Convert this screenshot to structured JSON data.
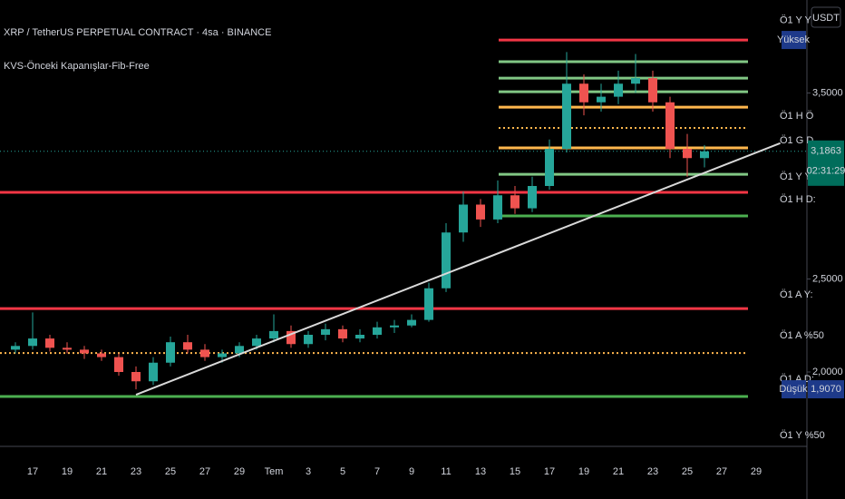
{
  "chart_data": {
    "type": "candlestick",
    "title": "XRP / TetherUS PERPETUAL CONTRACT · 4sa · BINANCE",
    "indicator": "KVS-Önceki Kapanışlar-Fib-Free",
    "currency": "USDT",
    "categories": [
      null,
      "17",
      null,
      "19",
      null,
      "21",
      null,
      "23",
      null,
      "25",
      null,
      "27",
      null,
      "29",
      null,
      "Tem",
      null,
      "3",
      null,
      "5",
      null,
      "7",
      null,
      "9",
      null,
      "11",
      null,
      "13",
      null,
      "15",
      null,
      "17",
      null,
      "19",
      null,
      "21",
      null,
      "23",
      null,
      "25",
      null,
      "27",
      null,
      "29"
    ],
    "open": [
      2.12,
      2.14,
      2.18,
      2.13,
      2.12,
      2.1,
      2.08,
      2.0,
      1.95,
      2.05,
      2.16,
      2.12,
      2.08,
      2.1,
      2.14,
      2.18,
      2.22,
      2.15,
      2.2,
      2.23,
      2.18,
      2.2,
      2.24,
      2.25,
      2.28,
      2.45,
      2.75,
      2.9,
      2.82,
      2.95,
      2.88,
      3.0,
      3.2,
      3.55,
      3.45,
      3.48,
      3.55,
      3.58,
      3.45,
      3.2,
      3.15,
      null,
      null,
      null
    ],
    "high": [
      2.16,
      2.32,
      2.2,
      2.16,
      2.14,
      2.12,
      2.1,
      2.03,
      2.08,
      2.19,
      2.2,
      2.15,
      2.12,
      2.16,
      2.2,
      2.31,
      2.25,
      2.22,
      2.26,
      2.25,
      2.23,
      2.27,
      2.28,
      2.31,
      2.48,
      2.8,
      2.97,
      2.93,
      3.03,
      3.0,
      3.05,
      3.25,
      3.72,
      3.6,
      3.55,
      3.62,
      3.71,
      3.62,
      3.48,
      3.28,
      3.22,
      null,
      null,
      null
    ],
    "low": [
      2.1,
      2.12,
      2.11,
      2.1,
      2.07,
      2.06,
      1.98,
      1.907,
      1.93,
      2.03,
      2.1,
      2.06,
      2.05,
      2.08,
      2.12,
      2.16,
      2.13,
      2.13,
      2.17,
      2.16,
      2.16,
      2.18,
      2.21,
      2.24,
      2.27,
      2.43,
      2.7,
      2.78,
      2.8,
      2.85,
      2.86,
      2.98,
      3.18,
      3.38,
      3.4,
      3.44,
      3.5,
      3.4,
      3.15,
      3.05,
      3.1,
      null,
      null,
      null
    ],
    "close": [
      2.14,
      2.18,
      2.13,
      2.12,
      2.1,
      2.08,
      2.0,
      1.95,
      2.05,
      2.16,
      2.12,
      2.08,
      2.1,
      2.14,
      2.18,
      2.22,
      2.15,
      2.2,
      2.23,
      2.18,
      2.2,
      2.24,
      2.25,
      2.28,
      2.45,
      2.75,
      2.9,
      2.82,
      2.95,
      2.88,
      3.0,
      3.2,
      3.55,
      3.45,
      3.48,
      3.55,
      3.58,
      3.45,
      3.2,
      3.15,
      3.1863,
      null,
      null,
      null
    ],
    "up_color": "#26a69a",
    "down_color": "#ef5350",
    "ylim": [
      1.6,
      4.0
    ],
    "yticks": [
      {
        "value": 3.5,
        "label": "3,5000"
      },
      {
        "value": 2.5,
        "label": "2,5000"
      },
      {
        "value": 2.0,
        "label": "2,0000"
      }
    ],
    "levels": [
      {
        "value": 3.785,
        "color": "#f23645",
        "dotted": false,
        "full": false
      },
      {
        "value": 3.668,
        "color": "#81c784",
        "dotted": false,
        "full": false
      },
      {
        "value": 3.58,
        "color": "#81c784",
        "dotted": false,
        "full": false
      },
      {
        "value": 3.507,
        "color": "#81c784",
        "dotted": false,
        "full": false
      },
      {
        "value": 3.424,
        "color": "#ffb74d",
        "dotted": false,
        "full": false
      },
      {
        "value": 3.312,
        "color": "#ffb74d",
        "dotted": true,
        "full": false
      },
      {
        "value": 3.205,
        "color": "#ffb74d",
        "dotted": false,
        "full": false
      },
      {
        "value": 3.063,
        "color": "#81c784",
        "dotted": false,
        "full": false
      },
      {
        "value": 2.966,
        "color": "#f23645",
        "dotted": false,
        "full": true
      },
      {
        "value": 2.839,
        "color": "#4caf50",
        "dotted": false,
        "full": false
      },
      {
        "value": 2.341,
        "color": "#f23645",
        "dotted": false,
        "full": true
      },
      {
        "value": 2.102,
        "color": "#ffb74d",
        "dotted": true,
        "full": true
      },
      {
        "value": 1.868,
        "color": "#4caf50",
        "dotted": false,
        "full": true
      }
    ],
    "trend_line": {
      "x": [
        7,
        44.4
      ],
      "values": [
        1.878,
        3.23
      ],
      "color": "#d9d9d9"
    },
    "high_label": "Yüksek",
    "low_label": {
      "text": "Düşük",
      "value": 1.907,
      "label": "1,9070"
    },
    "last_price": {
      "value": 3.1863,
      "label": "3,1863"
    },
    "countdown": "02:31:29",
    "right_labels": [
      {
        "text": "Ö1 Y Y",
        "value": 3.89
      },
      {
        "text": "Ö1 H Ö",
        "value": 3.376
      },
      {
        "text": "Ö1 G D",
        "value": 3.244
      },
      {
        "text": "Ö1 Y Y:",
        "value": 3.049
      },
      {
        "text": "Ö1 H D:",
        "value": 2.927
      },
      {
        "text": "Ö1 A Y:",
        "value": 2.415
      },
      {
        "text": "Ö1 A %50",
        "value": 2.195
      },
      {
        "text": "Ö1 A D:",
        "value": 1.961
      },
      {
        "text": "Ö1 Y %50",
        "value": 1.659
      }
    ]
  }
}
